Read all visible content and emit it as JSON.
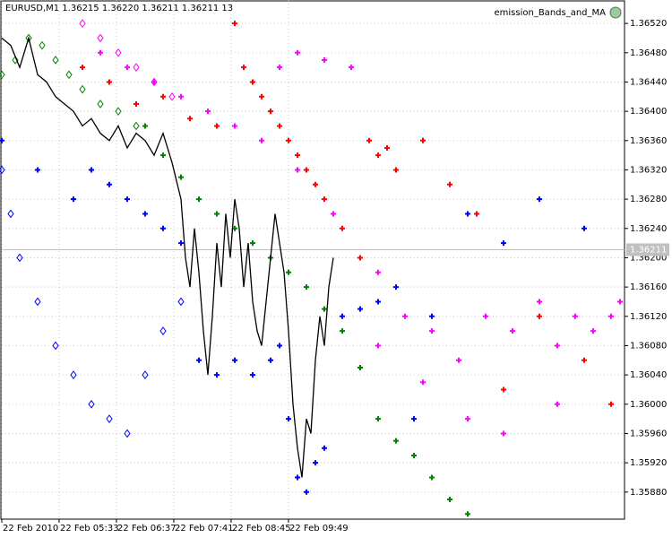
{
  "chart_data": {
    "type": "scatter",
    "title": "EURUSD,M1  1.36215 1.36220 1.36211 1.36211  13",
    "indicator": "emission_Bands_and_MA",
    "xlim": [
      0,
      695
    ],
    "xticks": [
      {
        "value": 0,
        "label": "22 Feb 2010"
      },
      {
        "value": 64,
        "label": "22 Feb 05:33"
      },
      {
        "value": 128,
        "label": "22 Feb 06:37"
      },
      {
        "value": 192,
        "label": "22 Feb 07:41"
      },
      {
        "value": 256,
        "label": "22 Feb 08:45"
      },
      {
        "value": 320,
        "label": "22 Feb 09:49"
      }
    ],
    "ylim": [
      1.35843,
      1.36552
    ],
    "yticks": [
      {
        "value": 1.3652,
        "label": "1.36520"
      },
      {
        "value": 1.3648,
        "label": "1.36480"
      },
      {
        "value": 1.3644,
        "label": "1.36440"
      },
      {
        "value": 1.364,
        "label": "1.36400"
      },
      {
        "value": 1.3636,
        "label": "1.36360"
      },
      {
        "value": 1.3632,
        "label": "1.36320"
      },
      {
        "value": 1.3628,
        "label": "1.36280"
      },
      {
        "value": 1.3624,
        "label": "1.36240"
      },
      {
        "value": 1.362,
        "label": "1.36200"
      },
      {
        "value": 1.3616,
        "label": "1.36160"
      },
      {
        "value": 1.3612,
        "label": "1.36120"
      },
      {
        "value": 1.3608,
        "label": "1.36080"
      },
      {
        "value": 1.3604,
        "label": "1.36040"
      },
      {
        "value": 1.36,
        "label": "1.36000"
      },
      {
        "value": 1.3596,
        "label": "1.35960"
      },
      {
        "value": 1.3592,
        "label": "1.35920"
      },
      {
        "value": 1.3588,
        "label": "1.35880"
      }
    ],
    "price_line": {
      "value": 1.36211,
      "label": "1.36211"
    },
    "grid": true,
    "series": [
      {
        "color": "#000000",
        "marker": "line",
        "x": [
          0,
          10,
          20,
          30,
          40,
          50,
          60,
          70,
          80,
          90,
          100,
          110,
          120,
          130,
          140,
          150,
          160,
          170,
          180,
          190,
          200,
          205,
          210,
          215,
          220,
          225,
          230,
          235,
          240,
          245,
          250,
          255,
          260,
          265,
          270,
          275,
          280,
          285,
          290,
          295,
          300,
          305,
          310,
          315,
          320,
          325,
          330,
          335,
          340,
          345,
          350,
          355,
          360,
          365,
          370
        ],
        "values": [
          1.365,
          1.3649,
          1.3646,
          1.365,
          1.3645,
          1.3644,
          1.3642,
          1.3641,
          1.364,
          1.3638,
          1.3639,
          1.3637,
          1.3636,
          1.3638,
          1.3635,
          1.3637,
          1.3636,
          1.3634,
          1.3637,
          1.3633,
          1.3628,
          1.362,
          1.3616,
          1.3624,
          1.3618,
          1.361,
          1.3604,
          1.3612,
          1.3622,
          1.3616,
          1.3626,
          1.362,
          1.3628,
          1.3624,
          1.3616,
          1.3622,
          1.3614,
          1.361,
          1.3608,
          1.3614,
          1.362,
          1.3626,
          1.3622,
          1.3618,
          1.361,
          1.36,
          1.3594,
          1.359,
          1.3598,
          1.3596,
          1.3606,
          1.3612,
          1.3608,
          1.3616,
          1.362
        ]
      },
      {
        "color": "#008000",
        "marker": "diamond",
        "x": [
          0,
          15,
          30,
          45,
          60,
          75,
          90,
          110,
          130,
          150
        ],
        "values": [
          1.3645,
          1.3647,
          1.365,
          1.3649,
          1.3647,
          1.3645,
          1.3643,
          1.3641,
          1.364,
          1.3638
        ]
      },
      {
        "color": "#008000",
        "marker": "cross",
        "x": [
          160,
          180,
          200,
          220,
          240,
          260,
          280,
          300,
          320,
          340,
          360,
          380,
          400,
          420,
          440,
          460,
          480,
          500,
          520
        ],
        "values": [
          1.3638,
          1.3634,
          1.3631,
          1.3628,
          1.3626,
          1.3624,
          1.3622,
          1.362,
          1.3618,
          1.3616,
          1.3613,
          1.361,
          1.3605,
          1.3598,
          1.3595,
          1.3593,
          1.359,
          1.3587,
          1.3585
        ]
      },
      {
        "color": "#ff0000",
        "marker": "cross",
        "x": [
          90,
          120,
          150,
          180,
          210,
          240,
          260,
          270,
          280,
          290,
          300,
          310,
          320,
          330,
          340,
          350,
          360,
          380,
          400,
          410,
          420,
          430,
          440,
          470,
          500,
          530,
          560,
          600,
          650,
          680
        ],
        "values": [
          1.3646,
          1.3644,
          1.3641,
          1.3642,
          1.3639,
          1.3638,
          1.3652,
          1.3646,
          1.3644,
          1.3642,
          1.364,
          1.3638,
          1.3636,
          1.3634,
          1.3632,
          1.363,
          1.3628,
          1.3624,
          1.362,
          1.3636,
          1.3634,
          1.3635,
          1.3632,
          1.3636,
          1.363,
          1.3626,
          1.3602,
          1.3612,
          1.3606,
          1.36
        ]
      },
      {
        "color": "#ff00ff",
        "marker": "diamond",
        "x": [
          90,
          110,
          130,
          150,
          170,
          190
        ],
        "values": [
          1.3652,
          1.365,
          1.3648,
          1.3646,
          1.3644,
          1.3642
        ]
      },
      {
        "color": "#ff00ff",
        "marker": "cross",
        "x": [
          110,
          140,
          170,
          200,
          230,
          260,
          290,
          310,
          330,
          360,
          390,
          420,
          450,
          480,
          510,
          540,
          570,
          600,
          620,
          640,
          660,
          680,
          690,
          330,
          370,
          420,
          470,
          520,
          560,
          620
        ],
        "values": [
          1.3648,
          1.3646,
          1.3644,
          1.3642,
          1.364,
          1.3638,
          1.3636,
          1.3646,
          1.3648,
          1.3647,
          1.3646,
          1.3618,
          1.3612,
          1.361,
          1.3606,
          1.3612,
          1.361,
          1.3614,
          1.3608,
          1.3612,
          1.361,
          1.3612,
          1.3614,
          1.3632,
          1.3626,
          1.3608,
          1.3603,
          1.3598,
          1.3596,
          1.36
        ]
      },
      {
        "color": "#0000ff",
        "marker": "diamond",
        "x": [
          0,
          10,
          20,
          40,
          60,
          80,
          100,
          120,
          140,
          160,
          180,
          200
        ],
        "values": [
          1.3632,
          1.3626,
          1.362,
          1.3614,
          1.3608,
          1.3604,
          1.36,
          1.3598,
          1.3596,
          1.3604,
          1.361,
          1.3614
        ]
      },
      {
        "color": "#0000ff",
        "marker": "cross",
        "x": [
          0,
          40,
          80,
          100,
          120,
          140,
          160,
          180,
          200,
          220,
          240,
          260,
          280,
          300,
          310,
          320,
          330,
          340,
          350,
          360,
          380,
          400,
          420,
          440,
          460,
          480,
          520,
          560,
          600,
          650
        ],
        "values": [
          1.3636,
          1.3632,
          1.3628,
          1.3632,
          1.363,
          1.3628,
          1.3626,
          1.3624,
          1.3622,
          1.3606,
          1.3604,
          1.3606,
          1.3604,
          1.3606,
          1.3608,
          1.3598,
          1.359,
          1.3588,
          1.3592,
          1.3594,
          1.3612,
          1.3613,
          1.3614,
          1.3616,
          1.3598,
          1.3612,
          1.3626,
          1.3622,
          1.3628,
          1.3624
        ]
      }
    ]
  }
}
